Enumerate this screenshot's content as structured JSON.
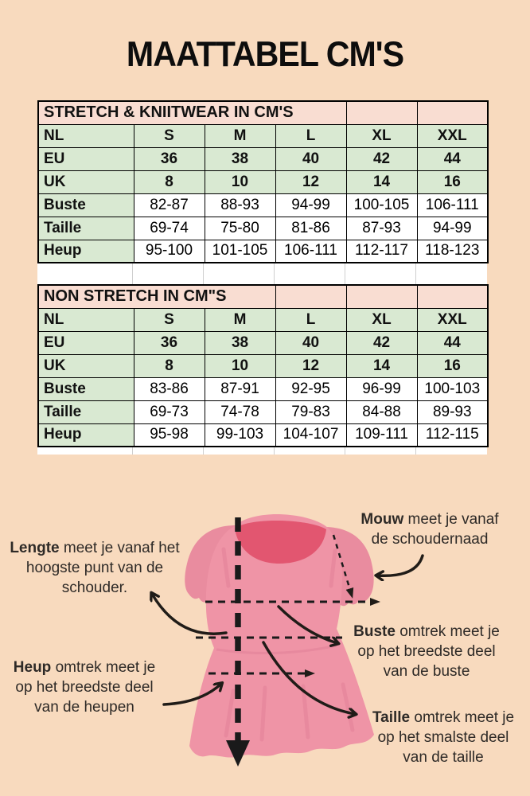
{
  "title": "MAATTABEL CM'S",
  "tables": [
    {
      "title": "STRETCH & KNIITWEAR IN CM'S",
      "span": 4,
      "rows": [
        {
          "label": "NL",
          "style": "green",
          "values": [
            "S",
            "M",
            "L",
            "XL",
            "XXL"
          ]
        },
        {
          "label": "EU",
          "style": "green",
          "values": [
            "36",
            "38",
            "40",
            "42",
            "44"
          ]
        },
        {
          "label": "UK",
          "style": "green",
          "values": [
            "8",
            "10",
            "12",
            "14",
            "16"
          ]
        },
        {
          "label": "Buste",
          "style": "measure",
          "values": [
            "82-87",
            "88-93",
            "94-99",
            "100-105",
            "106-111"
          ]
        },
        {
          "label": "Taille",
          "style": "measure",
          "values": [
            "69-74",
            "75-80",
            "81-86",
            "87-93",
            "94-99"
          ]
        },
        {
          "label": "Heup",
          "style": "measure",
          "values": [
            "95-100",
            "101-105",
            "106-111",
            "112-117",
            "118-123"
          ]
        }
      ]
    },
    {
      "title": "NON STRETCH IN CM\"S",
      "span": 3,
      "rows": [
        {
          "label": "NL",
          "style": "green",
          "values": [
            "S",
            "M",
            "L",
            "XL",
            "XXL"
          ]
        },
        {
          "label": "EU",
          "style": "green",
          "values": [
            "36",
            "38",
            "40",
            "42",
            "44"
          ]
        },
        {
          "label": "UK",
          "style": "green",
          "values": [
            "8",
            "10",
            "12",
            "14",
            "16"
          ]
        },
        {
          "label": "Buste",
          "style": "measure",
          "values": [
            "83-86",
            "87-91",
            "92-95",
            "96-99",
            "100-103"
          ]
        },
        {
          "label": "Taille",
          "style": "measure",
          "values": [
            "69-73",
            "74-78",
            "79-83",
            "84-88",
            "89-93"
          ]
        },
        {
          "label": "Heup",
          "style": "measure",
          "values": [
            "95-98",
            "99-103",
            "104-107",
            "109-111",
            "112-115"
          ]
        }
      ]
    }
  ],
  "diagram": {
    "annotations": [
      {
        "id": "lengte",
        "keyword": "Lengte",
        "text": "meet je vanaf het hoogste punt van de schouder."
      },
      {
        "id": "mouw",
        "keyword": "Mouw",
        "text": "meet je vanaf de schoudernaad"
      },
      {
        "id": "buste",
        "keyword": "Buste",
        "text": "omtrek meet je op het breedste deel van de buste"
      },
      {
        "id": "heup",
        "keyword": "Heup",
        "text": "omtrek meet je op het breedste deel van de heupen"
      },
      {
        "id": "taille",
        "keyword": "Taille",
        "text": "omtrek meet je op het smalste deel van de taille"
      }
    ]
  },
  "colors": {
    "background": "#f8dabe",
    "table_header_pink": "#f9ddd2",
    "table_green": "#d9e9d2",
    "dress_pink": "#ef94a6",
    "dress_sleeve_pink": "#e98c9f",
    "dress_dark_pink": "#e25670",
    "dress_shade_pink": "#e07d95",
    "ink": "#201c18",
    "text": "#2e2a27"
  }
}
